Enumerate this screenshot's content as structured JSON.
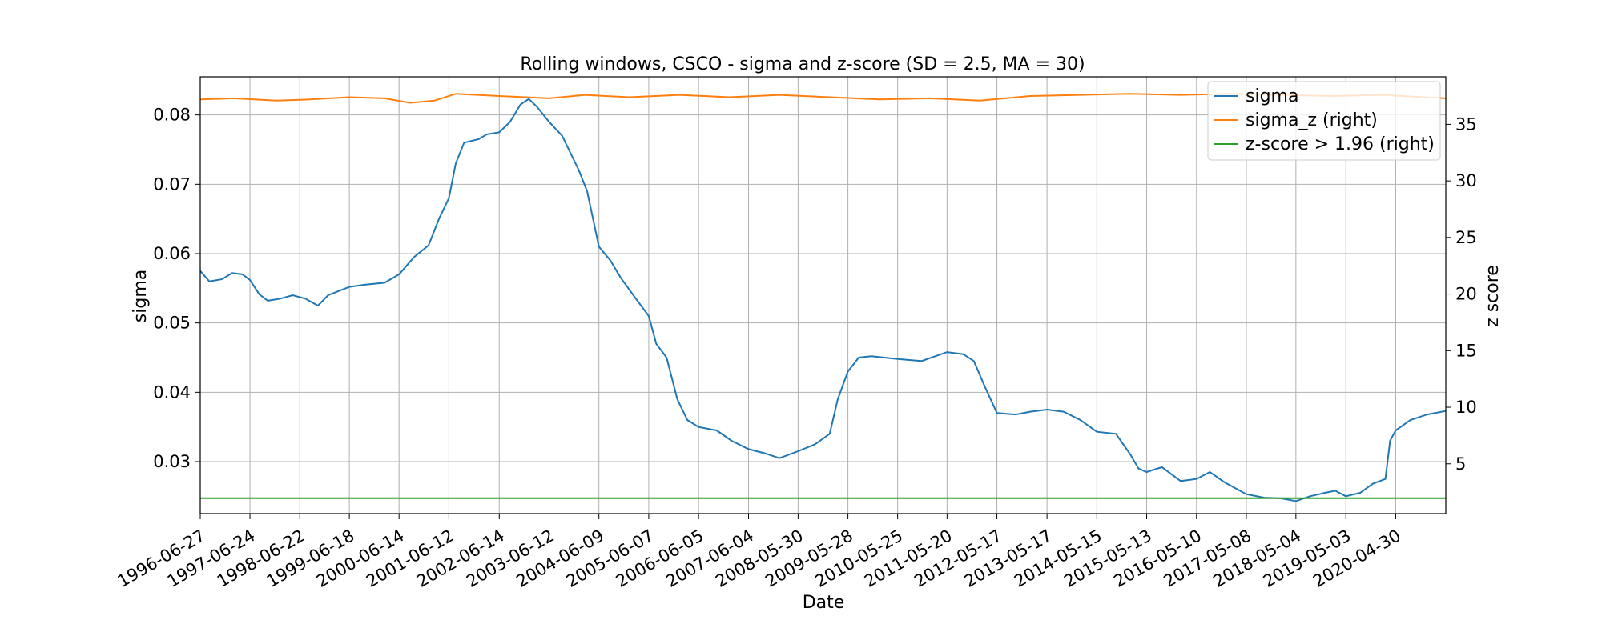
{
  "chart_data": {
    "type": "line",
    "title": "Rolling windows, CSCO - sigma and z-score (SD = 2.5, MA = 30)",
    "xlabel": "Date",
    "ylabel": "sigma",
    "ylabel_right": "z score",
    "x_ticks": [
      "1996-06-27",
      "1997-06-24",
      "1998-06-22",
      "1999-06-18",
      "2000-06-14",
      "2001-06-12",
      "2002-06-14",
      "2003-06-12",
      "2004-06-09",
      "2005-06-07",
      "2006-06-05",
      "2007-06-04",
      "2008-05-30",
      "2009-05-28",
      "2010-05-25",
      "2011-05-20",
      "2012-05-17",
      "2013-05-17",
      "2014-05-15",
      "2015-05-13",
      "2016-05-10",
      "2017-05-08",
      "2018-05-04",
      "2019-05-03",
      "2020-04-30"
    ],
    "xlim": [
      "1996-06-27",
      "2021-04-30"
    ],
    "ylim": [
      0.0225,
      0.0855
    ],
    "yticks": [
      0.03,
      0.04,
      0.05,
      0.06,
      0.07,
      0.08
    ],
    "ytick_labels": [
      "0.03",
      "0.04",
      "0.05",
      "0.06",
      "0.07",
      "0.08"
    ],
    "ylim_right": [
      0.6,
      39.2
    ],
    "yticks_right": [
      5,
      10,
      15,
      20,
      25,
      30,
      35
    ],
    "ytick_labels_right": [
      "5",
      "10",
      "15",
      "20",
      "25",
      "30",
      "35"
    ],
    "grid": true,
    "legend_position": "top-right",
    "series": [
      {
        "name": "sigma",
        "axis": "left",
        "color": "#1f77b4",
        "points": [
          [
            "1996-06-27",
            0.0575
          ],
          [
            "1996-09-01",
            0.056
          ],
          [
            "1996-12-01",
            0.0563
          ],
          [
            "1997-02-15",
            0.0572
          ],
          [
            "1997-05-01",
            0.057
          ],
          [
            "1997-06-24",
            0.0562
          ],
          [
            "1997-09-01",
            0.0541
          ],
          [
            "1997-11-01",
            0.0532
          ],
          [
            "1998-02-01",
            0.0535
          ],
          [
            "1998-05-01",
            0.054
          ],
          [
            "1998-08-01",
            0.0535
          ],
          [
            "1998-11-01",
            0.0525
          ],
          [
            "1999-01-15",
            0.054
          ],
          [
            "1999-06-18",
            0.0552
          ],
          [
            "1999-10-01",
            0.0555
          ],
          [
            "2000-03-01",
            0.0558
          ],
          [
            "2000-06-14",
            0.057
          ],
          [
            "2000-10-01",
            0.0595
          ],
          [
            "2001-01-15",
            0.0612
          ],
          [
            "2001-04-01",
            0.065
          ],
          [
            "2001-06-12",
            0.068
          ],
          [
            "2001-08-01",
            0.073
          ],
          [
            "2001-10-01",
            0.076
          ],
          [
            "2002-01-15",
            0.0765
          ],
          [
            "2002-03-15",
            0.0772
          ],
          [
            "2002-06-14",
            0.0775
          ],
          [
            "2002-09-01",
            0.079
          ],
          [
            "2002-11-15",
            0.0815
          ],
          [
            "2003-01-15",
            0.0823
          ],
          [
            "2003-03-15",
            0.0812
          ],
          [
            "2003-06-12",
            0.079
          ],
          [
            "2003-09-15",
            0.077
          ],
          [
            "2004-01-15",
            0.072
          ],
          [
            "2004-03-15",
            0.069
          ],
          [
            "2004-06-09",
            0.061
          ],
          [
            "2004-09-01",
            0.059
          ],
          [
            "2004-11-15",
            0.0565
          ],
          [
            "2005-02-15",
            0.054
          ],
          [
            "2005-06-07",
            0.051
          ],
          [
            "2005-08-01",
            0.047
          ],
          [
            "2005-10-15",
            0.045
          ],
          [
            "2006-01-01",
            0.039
          ],
          [
            "2006-03-15",
            0.036
          ],
          [
            "2006-06-05",
            0.035
          ],
          [
            "2006-10-15",
            0.0345
          ],
          [
            "2007-02-01",
            0.033
          ],
          [
            "2007-06-04",
            0.0318
          ],
          [
            "2007-10-01",
            0.0312
          ],
          [
            "2008-01-15",
            0.0305
          ],
          [
            "2008-05-30",
            0.0315
          ],
          [
            "2008-10-01",
            0.0325
          ],
          [
            "2009-01-15",
            0.034
          ],
          [
            "2009-03-15",
            0.039
          ],
          [
            "2009-05-28",
            0.043
          ],
          [
            "2009-08-15",
            0.045
          ],
          [
            "2009-11-15",
            0.0452
          ],
          [
            "2010-05-25",
            0.0448
          ],
          [
            "2010-11-15",
            0.0445
          ],
          [
            "2011-05-20",
            0.0458
          ],
          [
            "2011-09-15",
            0.0455
          ],
          [
            "2011-12-01",
            0.0445
          ],
          [
            "2012-02-15",
            0.041
          ],
          [
            "2012-05-17",
            0.037
          ],
          [
            "2012-10-01",
            0.0368
          ],
          [
            "2013-01-15",
            0.0372
          ],
          [
            "2013-05-17",
            0.0375
          ],
          [
            "2013-09-15",
            0.0372
          ],
          [
            "2014-01-15",
            0.036
          ],
          [
            "2014-05-15",
            0.0343
          ],
          [
            "2014-10-01",
            0.034
          ],
          [
            "2015-01-15",
            0.031
          ],
          [
            "2015-03-15",
            0.029
          ],
          [
            "2015-05-13",
            0.0285
          ],
          [
            "2015-09-01",
            0.0292
          ],
          [
            "2016-01-15",
            0.0272
          ],
          [
            "2016-05-10",
            0.0275
          ],
          [
            "2016-08-15",
            0.0285
          ],
          [
            "2016-12-01",
            0.027
          ],
          [
            "2017-05-08",
            0.0253
          ],
          [
            "2017-09-15",
            0.0248
          ],
          [
            "2018-01-15",
            0.0247
          ],
          [
            "2018-05-04",
            0.0243
          ],
          [
            "2018-08-15",
            0.025
          ],
          [
            "2018-12-01",
            0.0255
          ],
          [
            "2019-02-15",
            0.0258
          ],
          [
            "2019-05-03",
            0.025
          ],
          [
            "2019-08-15",
            0.0255
          ],
          [
            "2019-11-15",
            0.0268
          ],
          [
            "2020-02-15",
            0.0275
          ],
          [
            "2020-03-20",
            0.033
          ],
          [
            "2020-04-30",
            0.0345
          ],
          [
            "2020-08-15",
            0.036
          ],
          [
            "2020-12-15",
            0.0368
          ],
          [
            "2021-04-30",
            0.0373
          ]
        ]
      },
      {
        "name": "sigma_z (right)",
        "axis": "right",
        "color": "#ff7f0e",
        "points": [
          [
            "1996-06-27",
            37.2
          ],
          [
            "1997-03-01",
            37.3
          ],
          [
            "1998-01-01",
            37.1
          ],
          [
            "1998-09-01",
            37.2
          ],
          [
            "1999-06-18",
            37.4
          ],
          [
            "2000-03-01",
            37.3
          ],
          [
            "2000-09-01",
            36.9
          ],
          [
            "2001-03-01",
            37.1
          ],
          [
            "2001-08-01",
            37.7
          ],
          [
            "2002-06-14",
            37.5
          ],
          [
            "2003-06-12",
            37.3
          ],
          [
            "2004-03-01",
            37.6
          ],
          [
            "2005-01-15",
            37.4
          ],
          [
            "2006-01-15",
            37.6
          ],
          [
            "2007-01-15",
            37.4
          ],
          [
            "2008-01-15",
            37.6
          ],
          [
            "2009-01-15",
            37.4
          ],
          [
            "2010-01-15",
            37.2
          ],
          [
            "2011-01-15",
            37.3
          ],
          [
            "2012-01-15",
            37.1
          ],
          [
            "2013-01-15",
            37.5
          ],
          [
            "2014-01-15",
            37.6
          ],
          [
            "2015-01-15",
            37.7
          ],
          [
            "2016-01-15",
            37.6
          ],
          [
            "2017-01-15",
            37.7
          ],
          [
            "2018-01-15",
            37.6
          ],
          [
            "2019-01-15",
            37.5
          ],
          [
            "2020-01-15",
            37.6
          ],
          [
            "2021-04-30",
            37.3
          ]
        ]
      },
      {
        "name": "z-score > 1.96 (right)",
        "axis": "right",
        "color": "#2ca02c",
        "points": [
          [
            "1996-06-27",
            1.96
          ],
          [
            "2021-04-30",
            1.96
          ]
        ]
      }
    ]
  }
}
